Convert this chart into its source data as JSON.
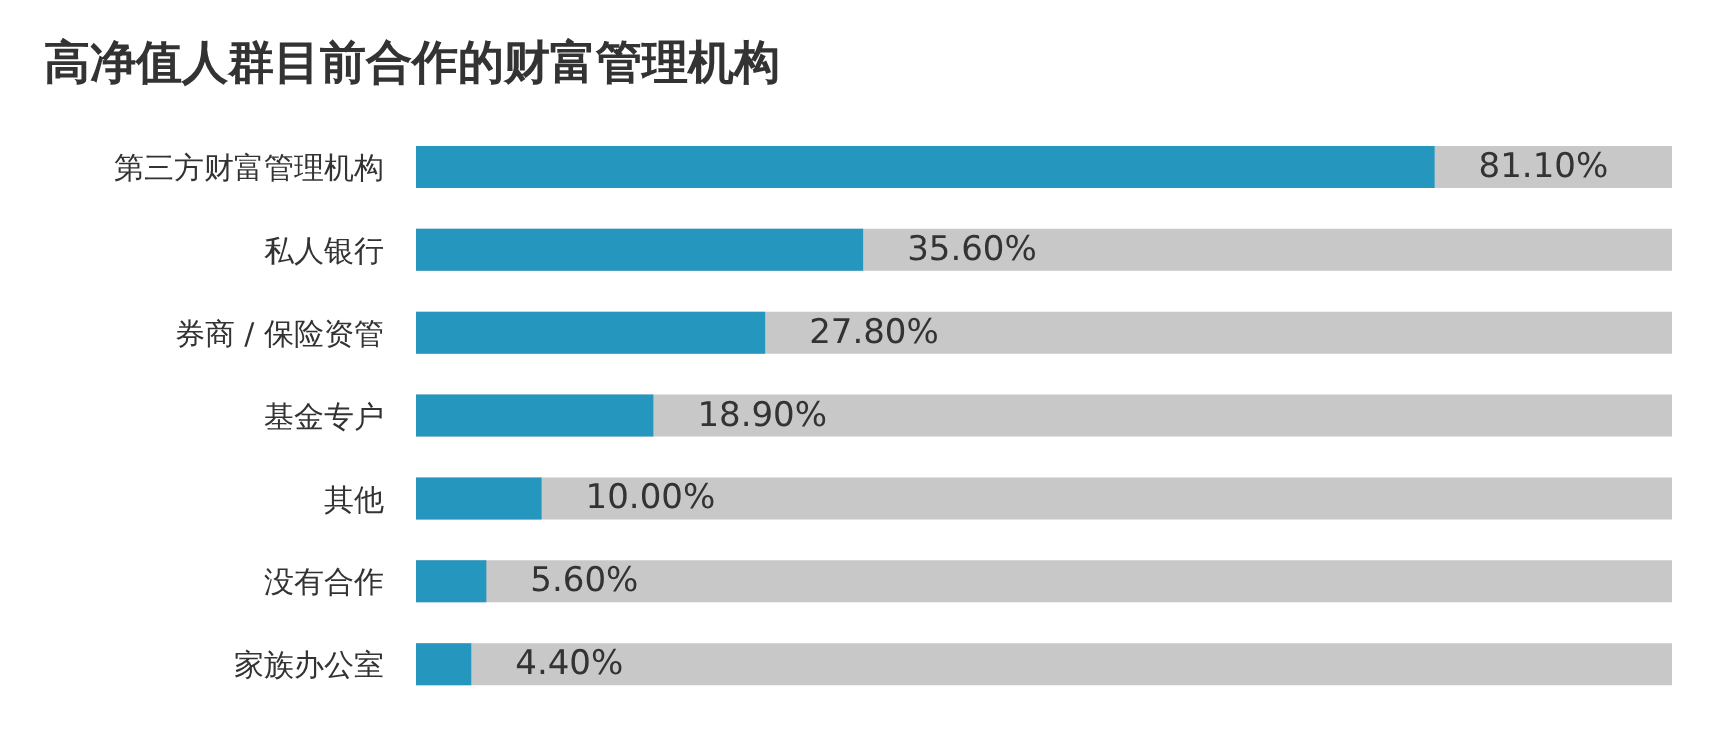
{
  "chart_data": {
    "type": "bar",
    "orientation": "horizontal",
    "title": "高净值人群目前合作的财富管理机构",
    "categories": [
      "第三方财富管理机构",
      "私人银行",
      "券商 / 保险资管",
      "基金专户",
      "其他",
      "没有合作",
      "家族办公室"
    ],
    "values": [
      81.1,
      35.6,
      27.8,
      18.9,
      10.0,
      5.6,
      4.4
    ],
    "value_labels": [
      "81.10%",
      "35.60%",
      "27.80%",
      "18.90%",
      "10.00%",
      "5.60%",
      "4.40%"
    ],
    "color": "#2596be",
    "xlim": [
      0,
      100
    ],
    "tick_labels": "y"
  }
}
